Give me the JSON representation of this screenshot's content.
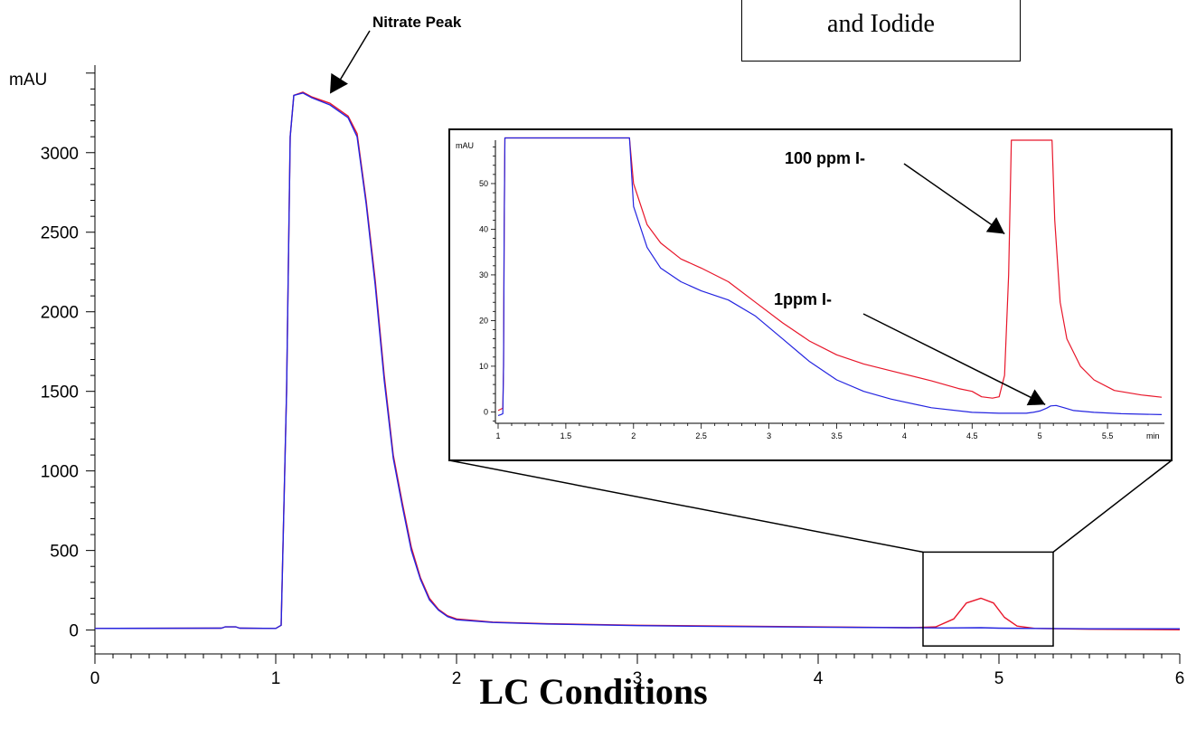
{
  "title_box": {
    "text": "and  Iodide"
  },
  "x_title": "LC Conditions",
  "colors": {
    "sample_100ppm": "#e8162a",
    "sample_1ppm": "#2424e0",
    "axis": "#000000"
  },
  "chart_data": [
    {
      "type": "line",
      "name": "main",
      "ylabel": "mAU",
      "xlim": [
        0,
        6
      ],
      "ylim": [
        -150,
        3550
      ],
      "x_ticks": [
        0,
        1,
        2,
        3,
        4,
        5,
        6
      ],
      "y_ticks": [
        0,
        500,
        1000,
        1500,
        2000,
        2500,
        3000
      ],
      "grid": false,
      "annotation": {
        "text": "Nitrate Peak",
        "x": 1.3,
        "y": 3370
      },
      "zoom_box": {
        "xlim": [
          4.58,
          5.3
        ],
        "ylim": [
          -100,
          490
        ]
      },
      "series": [
        {
          "color": "#e8162a",
          "points": [
            [
              0,
              10
            ],
            [
              0.7,
              12
            ],
            [
              0.72,
              20
            ],
            [
              0.78,
              20
            ],
            [
              0.8,
              12
            ],
            [
              1.0,
              10
            ],
            [
              1.03,
              30
            ],
            [
              1.06,
              1500
            ],
            [
              1.08,
              3100
            ],
            [
              1.1,
              3360
            ],
            [
              1.15,
              3380
            ],
            [
              1.2,
              3350
            ],
            [
              1.3,
              3310
            ],
            [
              1.4,
              3230
            ],
            [
              1.45,
              3120
            ],
            [
              1.5,
              2700
            ],
            [
              1.55,
              2200
            ],
            [
              1.6,
              1600
            ],
            [
              1.65,
              1100
            ],
            [
              1.7,
              800
            ],
            [
              1.75,
              520
            ],
            [
              1.8,
              330
            ],
            [
              1.85,
              200
            ],
            [
              1.9,
              130
            ],
            [
              1.95,
              90
            ],
            [
              2.0,
              70
            ],
            [
              2.2,
              50
            ],
            [
              2.5,
              40
            ],
            [
              3.0,
              30
            ],
            [
              3.5,
              25
            ],
            [
              4.0,
              20
            ],
            [
              4.5,
              15
            ],
            [
              4.65,
              20
            ],
            [
              4.75,
              70
            ],
            [
              4.82,
              170
            ],
            [
              4.9,
              200
            ],
            [
              4.97,
              170
            ],
            [
              5.03,
              80
            ],
            [
              5.1,
              25
            ],
            [
              5.2,
              10
            ],
            [
              5.5,
              5
            ],
            [
              6.0,
              2
            ]
          ]
        },
        {
          "color": "#2424e0",
          "points": [
            [
              0,
              10
            ],
            [
              0.7,
              12
            ],
            [
              0.72,
              20
            ],
            [
              0.78,
              20
            ],
            [
              0.8,
              12
            ],
            [
              1.0,
              10
            ],
            [
              1.03,
              30
            ],
            [
              1.06,
              1500
            ],
            [
              1.08,
              3100
            ],
            [
              1.1,
              3360
            ],
            [
              1.15,
              3375
            ],
            [
              1.2,
              3345
            ],
            [
              1.3,
              3300
            ],
            [
              1.4,
              3220
            ],
            [
              1.45,
              3100
            ],
            [
              1.5,
              2680
            ],
            [
              1.55,
              2170
            ],
            [
              1.6,
              1570
            ],
            [
              1.65,
              1080
            ],
            [
              1.7,
              780
            ],
            [
              1.75,
              500
            ],
            [
              1.8,
              320
            ],
            [
              1.85,
              190
            ],
            [
              1.9,
              125
            ],
            [
              1.95,
              85
            ],
            [
              2.0,
              65
            ],
            [
              2.2,
              48
            ],
            [
              2.5,
              38
            ],
            [
              3.0,
              28
            ],
            [
              3.5,
              22
            ],
            [
              4.0,
              18
            ],
            [
              4.5,
              15
            ],
            [
              4.7,
              13
            ],
            [
              4.9,
              15
            ],
            [
              5.0,
              12
            ],
            [
              5.2,
              10
            ],
            [
              5.5,
              8
            ],
            [
              6.0,
              8
            ]
          ]
        }
      ]
    },
    {
      "type": "line",
      "name": "inset",
      "ylabel": "mAU",
      "xunit": "min",
      "xlim": [
        0.98,
        5.92
      ],
      "ylim": [
        -2.5,
        59.5
      ],
      "x_ticks": [
        1,
        1.5,
        2,
        2.5,
        3,
        3.5,
        4,
        4.5,
        5,
        5.5
      ],
      "x_tick_labels": [
        "1",
        "1.5",
        "2",
        "2.5",
        "3",
        "3.5",
        "4",
        "4.5",
        "5",
        "5.5"
      ],
      "y_ticks": [
        0,
        10,
        20,
        30,
        40,
        50
      ],
      "grid": false,
      "annotations": [
        {
          "text": "100 ppm I-",
          "x": 4.74,
          "y": 39
        },
        {
          "text": "1ppm I-",
          "x": 5.04,
          "y": 1.6
        }
      ],
      "series": [
        {
          "color": "#e8162a",
          "points": [
            [
              1.0,
              0.3
            ],
            [
              1.02,
              0.6
            ],
            [
              1.035,
              0.8
            ],
            [
              1.04,
              10
            ],
            [
              1.045,
              40
            ],
            [
              1.05,
              60
            ],
            [
              1.97,
              60
            ],
            [
              2.0,
              50
            ],
            [
              2.1,
              41
            ],
            [
              2.2,
              37
            ],
            [
              2.35,
              33.5
            ],
            [
              2.5,
              31.5
            ],
            [
              2.7,
              28.5
            ],
            [
              2.9,
              24
            ],
            [
              3.1,
              19.5
            ],
            [
              3.3,
              15.5
            ],
            [
              3.5,
              12.5
            ],
            [
              3.7,
              10.5
            ],
            [
              3.9,
              9
            ],
            [
              4.2,
              6.8
            ],
            [
              4.4,
              5.1
            ],
            [
              4.5,
              4.5
            ],
            [
              4.57,
              3.3
            ],
            [
              4.65,
              3.0
            ],
            [
              4.7,
              3.3
            ],
            [
              4.74,
              8
            ],
            [
              4.77,
              30
            ],
            [
              4.79,
              59.5
            ],
            [
              5.09,
              59.5
            ],
            [
              5.11,
              42
            ],
            [
              5.15,
              24
            ],
            [
              5.2,
              16
            ],
            [
              5.3,
              10
            ],
            [
              5.4,
              7
            ],
            [
              5.55,
              4.7
            ],
            [
              5.75,
              3.7
            ],
            [
              5.9,
              3.2
            ]
          ]
        },
        {
          "color": "#2424e0",
          "points": [
            [
              1.0,
              -0.8
            ],
            [
              1.02,
              -0.6
            ],
            [
              1.035,
              -0.4
            ],
            [
              1.04,
              10
            ],
            [
              1.045,
              40
            ],
            [
              1.05,
              60
            ],
            [
              1.97,
              60
            ],
            [
              2.0,
              45
            ],
            [
              2.1,
              36
            ],
            [
              2.2,
              31.5
            ],
            [
              2.35,
              28.5
            ],
            [
              2.5,
              26.5
            ],
            [
              2.7,
              24.5
            ],
            [
              2.9,
              21
            ],
            [
              3.1,
              16
            ],
            [
              3.3,
              11
            ],
            [
              3.5,
              7
            ],
            [
              3.7,
              4.5
            ],
            [
              3.9,
              2.8
            ],
            [
              4.2,
              0.9
            ],
            [
              4.5,
              -0.1
            ],
            [
              4.7,
              -0.3
            ],
            [
              4.9,
              -0.3
            ],
            [
              4.95,
              -0.1
            ],
            [
              5.0,
              0.2
            ],
            [
              5.05,
              0.8
            ],
            [
              5.08,
              1.3
            ],
            [
              5.12,
              1.4
            ],
            [
              5.18,
              0.9
            ],
            [
              5.25,
              0.3
            ],
            [
              5.4,
              -0.1
            ],
            [
              5.6,
              -0.4
            ],
            [
              5.9,
              -0.6
            ]
          ]
        }
      ]
    }
  ]
}
